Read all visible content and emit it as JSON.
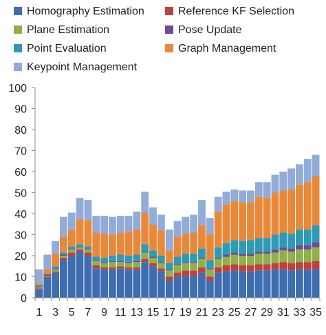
{
  "chart_data": {
    "type": "bar",
    "stacked": true,
    "ylim": [
      0,
      100
    ],
    "yticks": [
      0,
      10,
      20,
      30,
      40,
      50,
      60,
      70,
      80,
      90,
      100
    ],
    "grid": false,
    "legend_position": "top",
    "categories": [
      "1",
      "2",
      "3",
      "4",
      "5",
      "6",
      "7",
      "8",
      "9",
      "10",
      "11",
      "12",
      "13",
      "14",
      "15",
      "16",
      "17",
      "18",
      "19",
      "20",
      "21",
      "22",
      "23",
      "24",
      "25",
      "26",
      "27",
      "28",
      "29",
      "30",
      "31",
      "32",
      "33",
      "34",
      "35"
    ],
    "x_tick_labels": [
      "1",
      "3",
      "5",
      "7",
      "9",
      "11",
      "13",
      "15",
      "17",
      "19",
      "21",
      "23",
      "25",
      "27",
      "29",
      "31",
      "33",
      "35"
    ],
    "series": [
      {
        "name": "Homography Estimation",
        "color": "#3e6db0",
        "values": [
          4,
          9.5,
          12,
          18,
          20,
          22,
          20,
          14,
          13.5,
          13.5,
          14,
          13.5,
          13.5,
          17,
          15,
          12.5,
          8,
          10,
          10.5,
          10.5,
          12,
          8,
          12,
          12.5,
          13,
          12.5,
          12.5,
          13,
          13,
          13.5,
          13.5,
          13,
          13.5,
          13.5,
          13.5
        ]
      },
      {
        "name": "Reference KF Selection",
        "color": "#c0413c",
        "values": [
          0.5,
          0.5,
          0.5,
          1,
          1.5,
          1,
          1.5,
          1.5,
          1,
          1,
          1,
          1,
          1,
          1.5,
          1.5,
          1.5,
          2,
          2,
          2.5,
          2.5,
          2.5,
          2,
          2.5,
          3,
          3,
          3,
          3,
          3,
          3,
          3,
          3.5,
          3.5,
          3.5,
          3.5,
          4
        ]
      },
      {
        "name": "Plane Estimation",
        "color": "#8fb04a",
        "values": [
          0.5,
          0.5,
          1,
          1,
          1.5,
          1,
          1.5,
          2,
          2,
          2.5,
          2,
          2,
          2.5,
          3,
          2.5,
          2.5,
          3,
          3.5,
          3.5,
          3.5,
          4,
          3.5,
          4,
          4,
          4.5,
          4.5,
          4.5,
          5,
          5,
          5,
          5.5,
          5.5,
          6,
          6,
          6.5
        ]
      },
      {
        "name": "Pose Update",
        "color": "#6e4b94",
        "values": [
          0.5,
          0.5,
          0.5,
          0.5,
          0.5,
          0.5,
          0.5,
          0.5,
          0.5,
          0.5,
          0.5,
          0.5,
          0.5,
          0.5,
          0.5,
          0.5,
          0.5,
          0.5,
          0.5,
          0.5,
          0.5,
          0.5,
          0.5,
          1,
          1,
          1,
          1,
          1,
          1,
          1.5,
          1.5,
          1.5,
          2,
          2,
          2.5
        ]
      },
      {
        "name": "Point Evaluation",
        "color": "#2f9ab4",
        "values": [
          0.5,
          0.5,
          1,
          1,
          1,
          1,
          1,
          1.5,
          2,
          2.5,
          3,
          3,
          3,
          3.5,
          3,
          3,
          3,
          3.5,
          4,
          4,
          4.5,
          4,
          5,
          5.5,
          6,
          6,
          6.5,
          6.5,
          6.5,
          7,
          7,
          7,
          7.5,
          7.5,
          8
        ]
      },
      {
        "name": "Graph Management",
        "color": "#e8893a",
        "values": [
          1,
          2,
          6,
          7.5,
          8,
          12,
          12.5,
          11.5,
          11.5,
          10,
          10.5,
          11.5,
          12,
          15,
          12.5,
          12,
          6,
          9.5,
          9.5,
          10,
          11,
          12,
          17,
          18.5,
          18.5,
          18.5,
          18,
          19.5,
          19,
          20,
          20,
          21,
          21.5,
          22.5,
          23.5
        ]
      },
      {
        "name": "Keypoint Management",
        "color": "#92acd9",
        "values": [
          6.5,
          7,
          6,
          9.5,
          8,
          10,
          9.5,
          8,
          8.5,
          8.5,
          8,
          7.5,
          8.5,
          10,
          8,
          7.5,
          10,
          7.5,
          8,
          8.5,
          12,
          8,
          7,
          6,
          5.5,
          5.5,
          5.5,
          7,
          7.5,
          8.5,
          9,
          10,
          9.5,
          11,
          10
        ]
      }
    ]
  }
}
